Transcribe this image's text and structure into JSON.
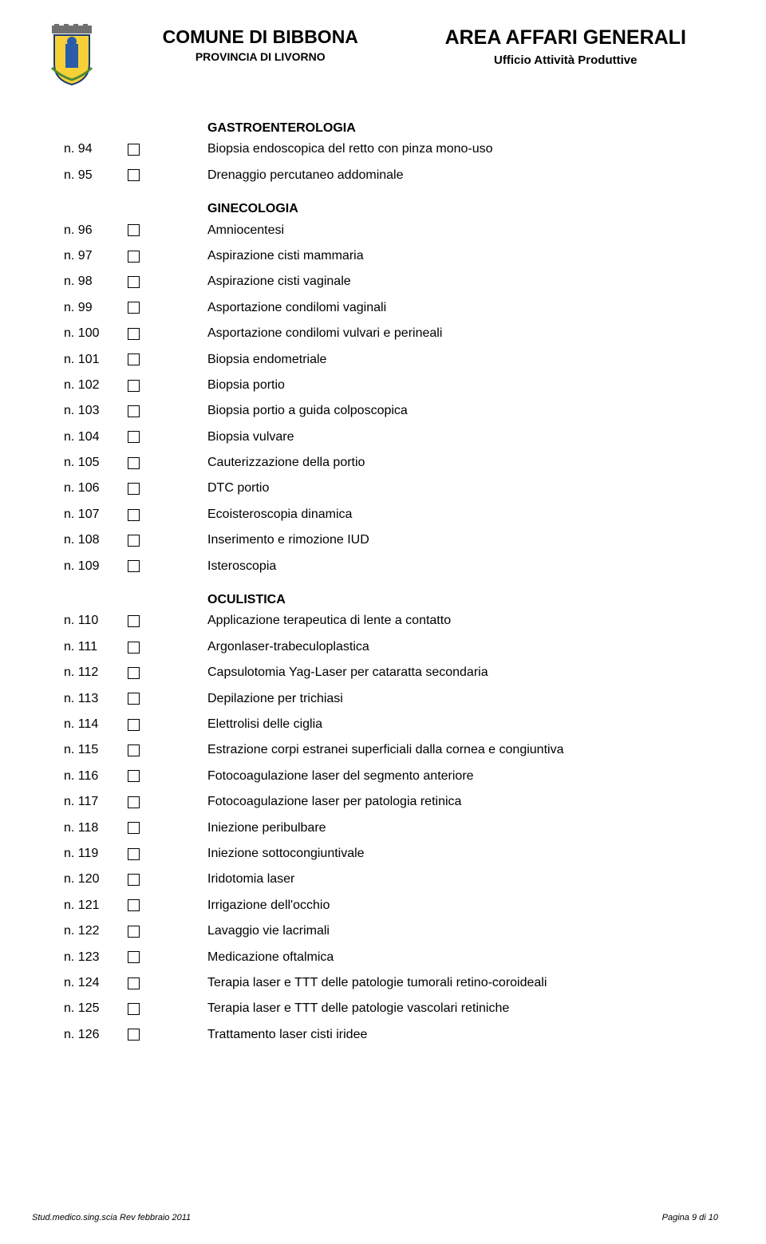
{
  "header": {
    "comune": "COMUNE DI BIBBONA",
    "provincia": "PROVINCIA DI LIVORNO",
    "area": "AREA AFFARI GENERALI",
    "ufficio": "Ufficio Attività Produttive"
  },
  "sections": [
    {
      "title": "GASTROENTEROLOGIA",
      "items": [
        {
          "num": "n. 94",
          "label": "Biopsia endoscopica del retto con pinza mono-uso"
        },
        {
          "num": "n. 95",
          "label": "Drenaggio percutaneo addominale"
        }
      ]
    },
    {
      "title": "GINECOLOGIA",
      "items": [
        {
          "num": "n. 96",
          "label": "Amniocentesi"
        },
        {
          "num": "n. 97",
          "label": "Aspirazione cisti mammaria"
        },
        {
          "num": "n. 98",
          "label": "Aspirazione cisti vaginale"
        },
        {
          "num": "n. 99",
          "label": "Asportazione condilomi vaginali"
        },
        {
          "num": "n. 100",
          "label": "Asportazione condilomi vulvari e perineali"
        },
        {
          "num": "n. 101",
          "label": "Biopsia endometriale"
        },
        {
          "num": "n. 102",
          "label": "Biopsia portio"
        },
        {
          "num": "n. 103",
          "label": "Biopsia portio a guida colposcopica"
        },
        {
          "num": "n. 104",
          "label": "Biopsia vulvare"
        },
        {
          "num": "n. 105",
          "label": "Cauterizzazione della portio"
        },
        {
          "num": "n. 106",
          "label": "DTC portio"
        },
        {
          "num": "n. 107",
          "label": "Ecoisteroscopia dinamica"
        },
        {
          "num": "n. 108",
          "label": "Inserimento e rimozione IUD"
        },
        {
          "num": "n. 109",
          "label": "Isteroscopia"
        }
      ]
    },
    {
      "title": "OCULISTICA",
      "items": [
        {
          "num": "n. 110",
          "label": "Applicazione terapeutica di lente a contatto"
        },
        {
          "num": "n. 111",
          "label": "Argonlaser-trabeculoplastica"
        },
        {
          "num": "n. 112",
          "label": "Capsulotomia Yag-Laser per cataratta secondaria"
        },
        {
          "num": "n. 113",
          "label": "Depilazione per trichiasi"
        },
        {
          "num": "n. 114",
          "label": "Elettrolisi delle ciglia"
        },
        {
          "num": "n. 115",
          "label": "Estrazione corpi estranei superficiali dalla cornea e congiuntiva"
        },
        {
          "num": "n. 116",
          "label": "Fotocoagulazione laser del segmento anteriore"
        },
        {
          "num": "n. 117",
          "label": "Fotocoagulazione laser per patologia retinica"
        },
        {
          "num": "n. 118",
          "label": "Iniezione peribulbare"
        },
        {
          "num": "n. 119",
          "label": "Iniezione sottocongiuntivale"
        },
        {
          "num": "n. 120",
          "label": "Iridotomia laser"
        },
        {
          "num": "n. 121",
          "label": "Irrigazione dell'occhio"
        },
        {
          "num": "n. 122",
          "label": "Lavaggio vie lacrimali"
        },
        {
          "num": "n. 123",
          "label": "Medicazione oftalmica"
        },
        {
          "num": "n. 124",
          "label": "Terapia laser e TTT delle patologie tumorali retino-coroideali"
        },
        {
          "num": "n. 125",
          "label": "Terapia laser e TTT delle patologie vascolari retiniche"
        },
        {
          "num": "n. 126",
          "label": "Trattamento laser cisti iridee"
        }
      ]
    }
  ],
  "footer": {
    "left": "Stud.medico.sing.scia Rev febbraio 2011",
    "right": "Pagina 9 di 10"
  },
  "crest_colors": {
    "crown": "#606060",
    "shield_bg": "#f7d038",
    "shield_figure": "#2a5caa",
    "border": "#1a3a6a"
  }
}
